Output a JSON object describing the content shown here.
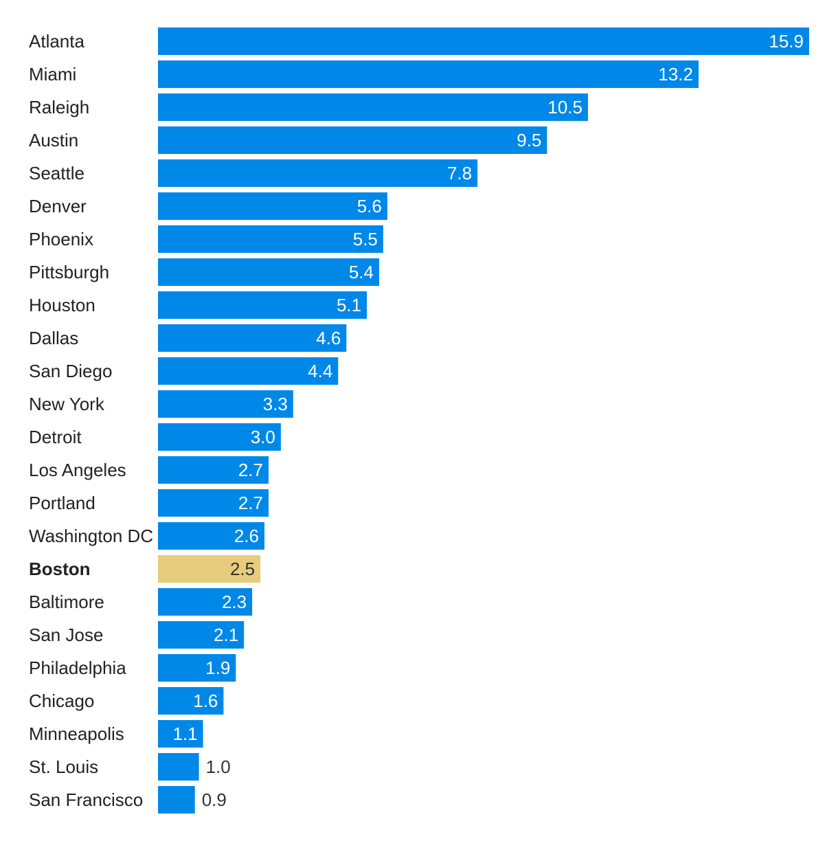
{
  "chart_data": {
    "type": "bar",
    "orientation": "horizontal",
    "categories": [
      "Atlanta",
      "Miami",
      "Raleigh",
      "Austin",
      "Seattle",
      "Denver",
      "Phoenix",
      "Pittsburgh",
      "Houston",
      "Dallas",
      "San Diego",
      "New York",
      "Detroit",
      "Los Angeles",
      "Portland",
      "Washington DC",
      "Boston",
      "Baltimore",
      "San Jose",
      "Philadelphia",
      "Chicago",
      "Minneapolis",
      "St. Louis",
      "San Francisco"
    ],
    "values": [
      15.9,
      13.2,
      10.5,
      9.5,
      7.8,
      5.6,
      5.5,
      5.4,
      5.1,
      4.6,
      4.4,
      3.3,
      3.0,
      2.7,
      2.7,
      2.6,
      2.5,
      2.3,
      2.1,
      1.9,
      1.6,
      1.1,
      1.0,
      0.9
    ],
    "value_labels": [
      "15.9",
      "13.2",
      "10.5",
      "9.5",
      "7.8",
      "5.6",
      "5.5",
      "5.4",
      "5.1",
      "4.6",
      "4.4",
      "3.3",
      "3.0",
      "2.7",
      "2.7",
      "2.6",
      "2.5",
      "2.3",
      "2.1",
      "1.9",
      "1.6",
      "1.1",
      "1.0",
      "0.9"
    ],
    "highlight": "Boston",
    "colors": {
      "bar": "#0088e8",
      "highlight_bar": "#e6cc7c",
      "label_text": "#222222",
      "value_inside": "#ffffff",
      "value_highlight": "#333333",
      "value_outside": "#333333"
    },
    "title": "",
    "xlabel": "",
    "ylabel": "",
    "xlim": [
      0,
      15.9
    ],
    "grid": false,
    "legend": "none"
  }
}
